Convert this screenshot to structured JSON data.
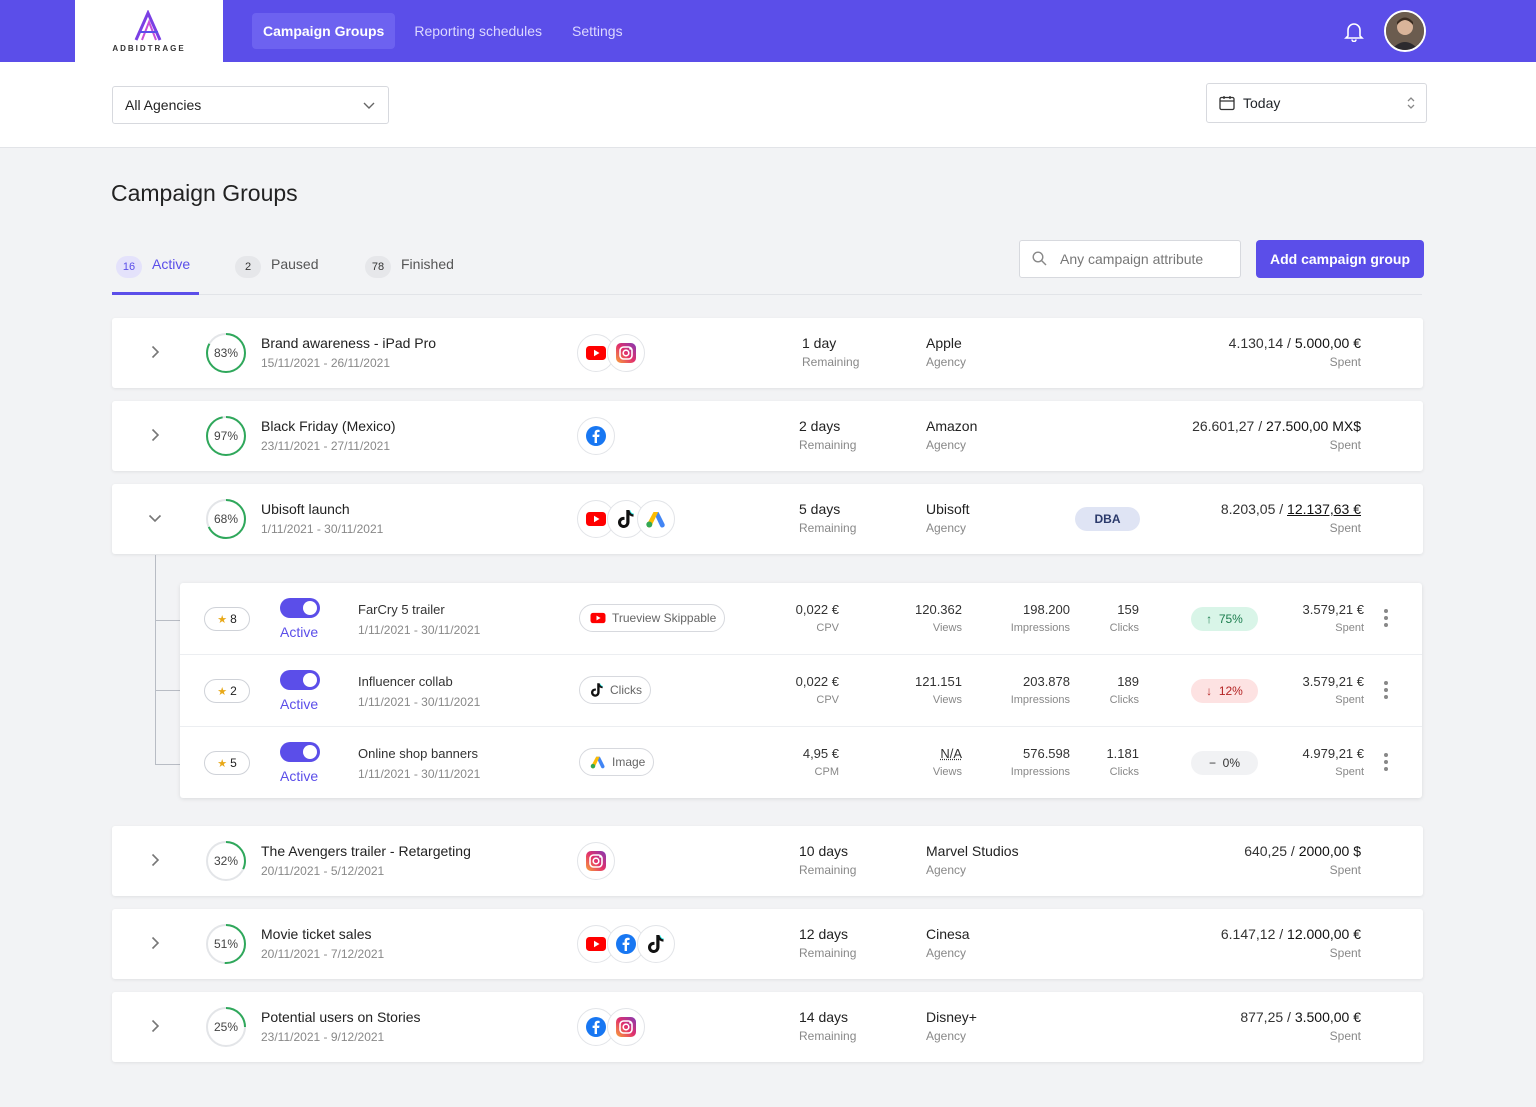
{
  "app": {
    "logo_text": "ADBIDTRAGE"
  },
  "nav": {
    "tabs": [
      {
        "label": "Campaign Groups"
      },
      {
        "label": "Reporting schedules"
      },
      {
        "label": "Settings"
      }
    ]
  },
  "filters": {
    "agency": "All Agencies",
    "date": "Today"
  },
  "page": {
    "title": "Campaign Groups"
  },
  "status_tabs": [
    {
      "count": "16",
      "label": "Active"
    },
    {
      "count": "2",
      "label": "Paused"
    },
    {
      "count": "78",
      "label": "Finished"
    }
  ],
  "search": {
    "placeholder": "Any campaign attribute"
  },
  "add_button": "Add campaign group",
  "groups": [
    {
      "percent": "83%",
      "progress": 0.83,
      "name": "Brand awareness - iPad Pro",
      "dates": "15/11/2021 - 26/11/2021",
      "platforms": [
        "youtube-icon",
        "instagram-icon"
      ],
      "remaining": "1 day",
      "remaining_label": "Remaining",
      "agency": "Apple",
      "agency_label": "Agency",
      "spent": "4.130,14",
      "budget": "5.000,00 €",
      "spent_label": "Spent"
    },
    {
      "percent": "97%",
      "progress": 0.97,
      "name": "Black Friday (Mexico)",
      "dates": "23/11/2021 - 27/11/2021",
      "platforms": [
        "facebook-icon"
      ],
      "remaining": "2 days",
      "remaining_label": "Remaining",
      "agency": "Amazon",
      "agency_label": "Agency",
      "spent": "26.601,27",
      "budget": "27.500,00 MX$",
      "spent_label": "Spent"
    },
    {
      "percent": "68%",
      "progress": 0.68,
      "name": "Ubisoft launch",
      "dates": "1/11/2021 - 30/11/2021",
      "platforms": [
        "youtube-icon",
        "tiktok-icon",
        "google-ads-icon"
      ],
      "remaining": "5 days",
      "remaining_label": "Remaining",
      "agency": "Ubisoft",
      "agency_label": "Agency",
      "badge": "DBA",
      "spent": "8.203,05",
      "budget": "12.137,63 €",
      "spent_label": "Spent"
    },
    {
      "percent": "32%",
      "progress": 0.32,
      "name": "The Avengers trailer - Retargeting",
      "dates": "20/11/2021 - 5/12/2021",
      "platforms": [
        "instagram-icon"
      ],
      "remaining": "10 days",
      "remaining_label": "Remaining",
      "agency": "Marvel Studios",
      "agency_label": "Agency",
      "spent": "640,25",
      "budget": "2000,00 $",
      "spent_label": "Spent"
    },
    {
      "percent": "51%",
      "progress": 0.51,
      "name": "Movie ticket sales",
      "dates": "20/11/2021 - 7/12/2021",
      "platforms": [
        "youtube-icon",
        "facebook-icon",
        "tiktok-icon"
      ],
      "remaining": "12 days",
      "remaining_label": "Remaining",
      "agency": "Cinesa",
      "agency_label": "Agency",
      "spent": "6.147,12",
      "budget": "12.000,00 €",
      "spent_label": "Spent"
    },
    {
      "percent": "25%",
      "progress": 0.25,
      "name": "Potential users on Stories",
      "dates": "23/11/2021 - 9/12/2021",
      "platforms": [
        "facebook-icon",
        "instagram-icon"
      ],
      "remaining": "14 days",
      "remaining_label": "Remaining",
      "agency": "Disney+",
      "agency_label": "Agency",
      "spent": "877,25",
      "budget": "3.500,00 €",
      "spent_label": "Spent"
    }
  ],
  "subcampaigns": [
    {
      "rating": "8",
      "status": "Active",
      "name": "FarCry 5 trailer",
      "dates": "1/11/2021 - 30/11/2021",
      "format_icon": "youtube-icon",
      "format": "Trueview Skippable",
      "cost": "0,022 €",
      "cost_label": "CPV",
      "views": "120.362",
      "views_label": "Views",
      "impressions": "198.200",
      "impressions_label": "Impressions",
      "clicks": "159",
      "clicks_label": "Clicks",
      "trend": "75%",
      "trend_dir": "up",
      "trend_symbol": "↑",
      "spent": "3.579,21 €",
      "spent_label": "Spent"
    },
    {
      "rating": "2",
      "status": "Active",
      "name": "Influencer collab",
      "dates": "1/11/2021 - 30/11/2021",
      "format_icon": "tiktok-icon",
      "format": "Clicks",
      "cost": "0,022 €",
      "cost_label": "CPV",
      "views": "121.151",
      "views_label": "Views",
      "impressions": "203.878",
      "impressions_label": "Impressions",
      "clicks": "189",
      "clicks_label": "Clicks",
      "trend": "12%",
      "trend_dir": "down",
      "trend_symbol": "↓",
      "spent": "3.579,21 €",
      "spent_label": "Spent"
    },
    {
      "rating": "5",
      "status": "Active",
      "name": "Online shop banners",
      "dates": "1/11/2021 - 30/11/2021",
      "format_icon": "google-ads-icon",
      "format": "Image",
      "cost": "4,95 €",
      "cost_label": "CPM",
      "views": "N/A",
      "views_label": "Views",
      "impressions": "576.598",
      "impressions_label": "Impressions",
      "clicks": "1.181",
      "clicks_label": "Clicks",
      "trend": "0%",
      "trend_dir": "flat",
      "trend_symbol": "−",
      "spent": "4.979,21 €",
      "spent_label": "Spent"
    }
  ]
}
